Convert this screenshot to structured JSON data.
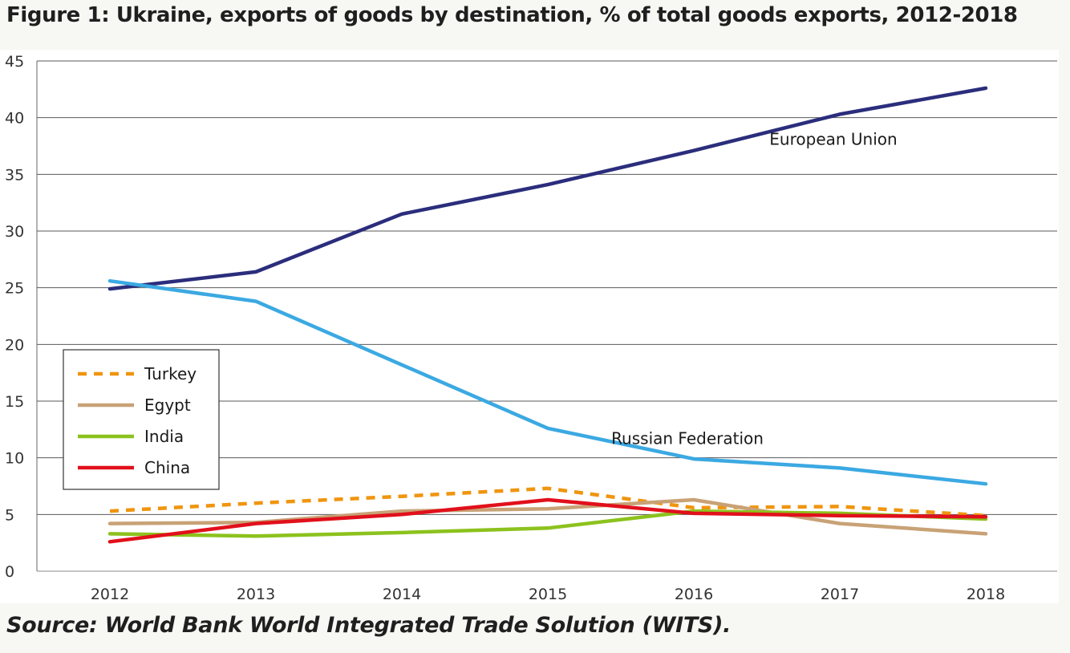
{
  "header": {
    "title": "Figure 1: Ukraine, exports of goods by destination, % of total goods exports, 2012-2018"
  },
  "footer": {
    "source": "Source: World Bank World Integrated Trade Solution (WITS)."
  },
  "chart_data": {
    "type": "line",
    "title": "Figure 1: Ukraine, exports of goods by destination, % of total goods exports, 2012-2018",
    "xlabel": "",
    "ylabel": "",
    "x": [
      2012,
      2013,
      2014,
      2015,
      2016,
      2017,
      2018
    ],
    "x_tick_labels": [
      "2012",
      "2013",
      "2014",
      "2015",
      "2016",
      "2017",
      "2018"
    ],
    "y_ticks": [
      0,
      5,
      10,
      15,
      20,
      25,
      30,
      35,
      40,
      45
    ],
    "y_tick_labels": [
      "0",
      "5",
      "10",
      "15",
      "20",
      "25",
      "30",
      "35",
      "40",
      "45"
    ],
    "ylim": [
      0,
      45
    ],
    "grid": "horizontal",
    "legend_position": "lower-left",
    "series": [
      {
        "key": "eu",
        "name": "European Union",
        "color": "#2b2d7c",
        "dash": "solid",
        "in_legend": false,
        "values": [
          24.9,
          26.4,
          31.5,
          34.1,
          37.1,
          40.3,
          42.6
        ]
      },
      {
        "key": "russia",
        "name": "Russian Federation",
        "color": "#3ba9e2",
        "dash": "solid",
        "in_legend": false,
        "values": [
          25.6,
          23.8,
          18.2,
          12.6,
          9.9,
          9.1,
          7.7
        ]
      },
      {
        "key": "turkey",
        "name": "Turkey",
        "color": "#f0950f",
        "dash": "dashed",
        "in_legend": true,
        "values": [
          5.3,
          6.0,
          6.6,
          7.3,
          5.6,
          5.7,
          4.9
        ]
      },
      {
        "key": "egypt",
        "name": "Egypt",
        "color": "#c8a276",
        "dash": "solid",
        "in_legend": true,
        "values": [
          4.2,
          4.3,
          5.3,
          5.5,
          6.3,
          4.2,
          3.3
        ]
      },
      {
        "key": "india",
        "name": "India",
        "color": "#8cc21d",
        "dash": "solid",
        "in_legend": true,
        "values": [
          3.3,
          3.1,
          3.4,
          3.8,
          5.3,
          5.1,
          4.6
        ]
      },
      {
        "key": "china",
        "name": "China",
        "color": "#e1101b",
        "dash": "solid",
        "in_legend": true,
        "values": [
          2.6,
          4.2,
          5.0,
          6.3,
          5.1,
          4.9,
          4.8
        ]
      }
    ],
    "annotations": [
      {
        "series": "eu",
        "text": "European Union",
        "anchor_x": 2017,
        "anchor_y": 37.6
      },
      {
        "series": "russia",
        "text": "Russian Federation",
        "anchor_x": 2016,
        "anchor_y": 11.2
      }
    ]
  }
}
